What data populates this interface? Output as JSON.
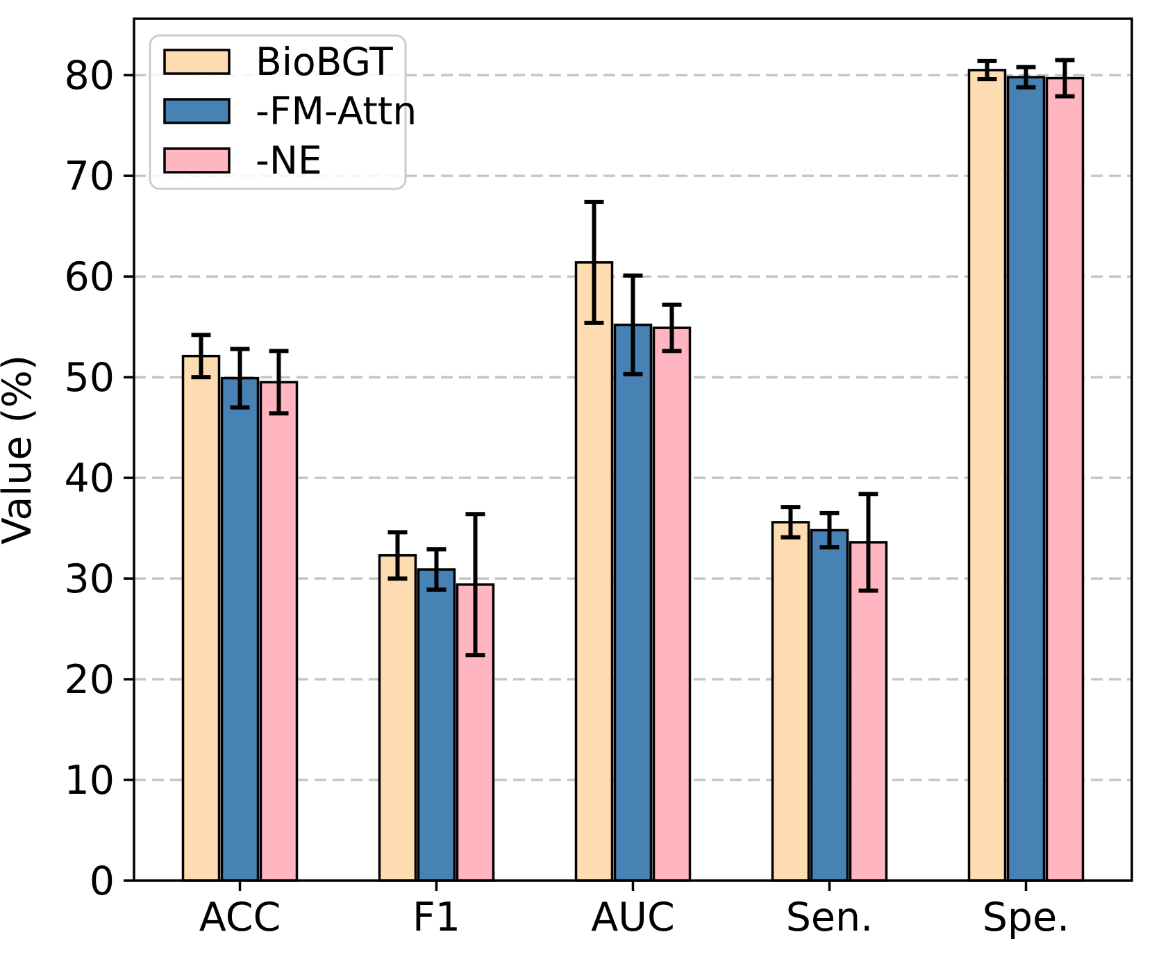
{
  "chart_data": {
    "type": "bar",
    "title": "",
    "xlabel": "",
    "ylabel": "Value (%)",
    "categories": [
      "ACC",
      "F1",
      "AUC",
      "Sen.",
      "Spe."
    ],
    "series": [
      {
        "name": "BioBGT",
        "color": "#FCDCB0",
        "edge_color": "#000000",
        "values": [
          52.1,
          32.3,
          61.4,
          35.6,
          80.5
        ],
        "errors": [
          2.1,
          2.3,
          6.0,
          1.5,
          0.9
        ]
      },
      {
        "name": "-FM-Attn",
        "color": "#4682B4",
        "edge_color": "#000000",
        "values": [
          49.9,
          30.9,
          55.2,
          34.8,
          79.8
        ],
        "errors": [
          2.9,
          2.0,
          4.9,
          1.7,
          1.0
        ]
      },
      {
        "name": "-NE",
        "color": "#FFB6C1",
        "edge_color": "#000000",
        "values": [
          49.5,
          29.4,
          54.9,
          33.6,
          79.7
        ],
        "errors": [
          3.1,
          7.0,
          2.3,
          4.8,
          1.8
        ]
      }
    ],
    "ylim": [
      0,
      85.6
    ],
    "yticks": [
      0,
      10,
      20,
      30,
      40,
      50,
      60,
      70,
      80
    ],
    "grid": "horizontal-dashed",
    "grid_color": "#c4c4c4",
    "error_bar_color": "#000000",
    "legend_position": "upper-left",
    "legend_border_color": "#cccccc",
    "legend_background": "#ffffff",
    "axis_color": "#000000"
  }
}
